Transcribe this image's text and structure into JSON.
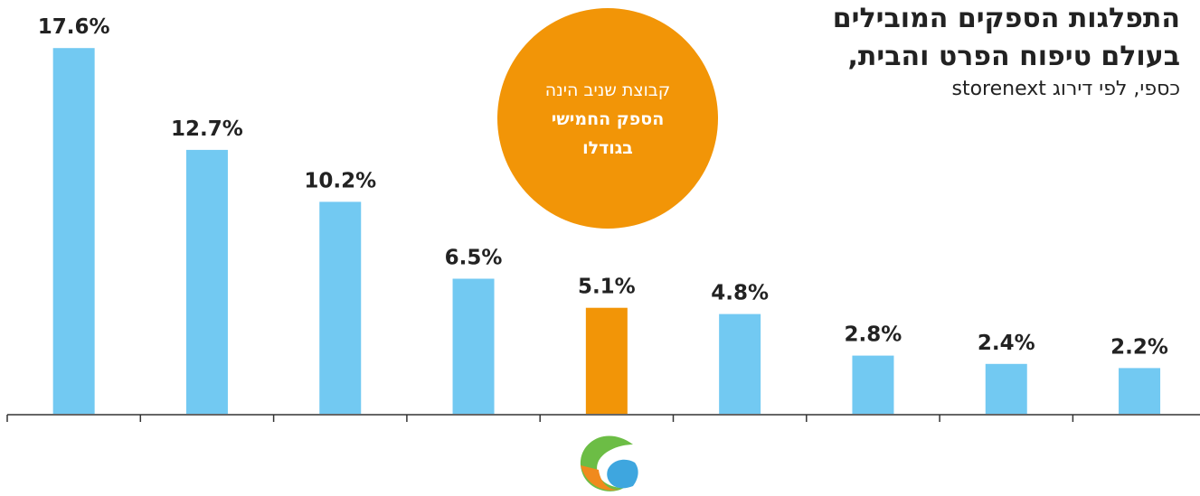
{
  "chart_data": {
    "type": "bar",
    "title": [
      "התפלגות הספקים המובילים",
      "בעולם טיפוח הפרט והבית,"
    ],
    "subtitle": "כספי, לפי דירוג storenext",
    "annotation": [
      "קבוצת שניב הינה",
      "הספק החמישי",
      "בגודלו"
    ],
    "categories": [
      null,
      null,
      null,
      null,
      null,
      null,
      null,
      null,
      null
    ],
    "values": [
      17.6,
      12.7,
      10.2,
      6.5,
      5.1,
      4.8,
      2.8,
      2.4,
      2.2
    ],
    "value_labels": [
      "17.6%",
      "12.7%",
      "10.2%",
      "6.5%",
      "5.1%",
      "4.8%",
      "2.8%",
      "2.4%",
      "2.2%"
    ],
    "colors": [
      "#72c9f2",
      "#72c9f2",
      "#72c9f2",
      "#72c9f2",
      "#f29507",
      "#72c9f2",
      "#72c9f2",
      "#72c9f2",
      "#72c9f2"
    ],
    "ylim": [
      0,
      20
    ]
  }
}
